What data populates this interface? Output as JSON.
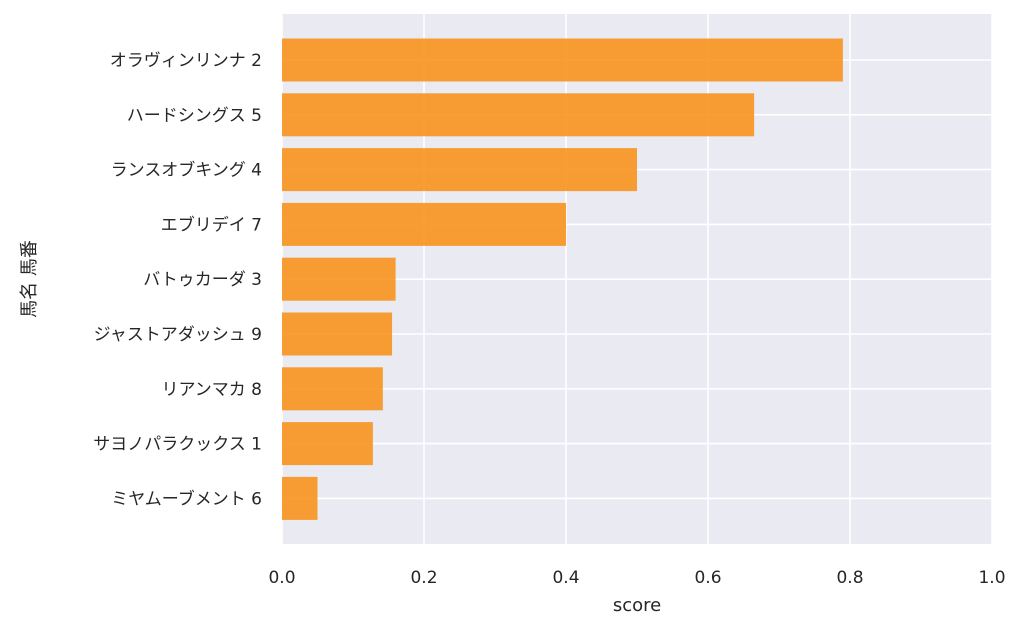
{
  "chart_data": {
    "type": "bar",
    "orientation": "horizontal",
    "categories": [
      "オラヴィンリンナ 2",
      "ハードシングス 5",
      "ランスオブキング 4",
      "エブリデイ 7",
      "バトゥカーダ 3",
      "ジャストアダッシュ 9",
      "リアンマカ 8",
      "サヨノパラクックス 1",
      "ミヤムーブメント 6"
    ],
    "values": [
      0.79,
      0.665,
      0.5,
      0.4,
      0.16,
      0.155,
      0.142,
      0.128,
      0.05
    ],
    "xlabel": "score",
    "ylabel": "馬名 馬番",
    "xlim": [
      0,
      1.0
    ],
    "xticks": [
      "0.0",
      "0.2",
      "0.4",
      "0.6",
      "0.8",
      "1.0"
    ],
    "grid": true,
    "legend": "none",
    "bar_color": "#f7931e",
    "background_color": "#eaeaf2"
  }
}
